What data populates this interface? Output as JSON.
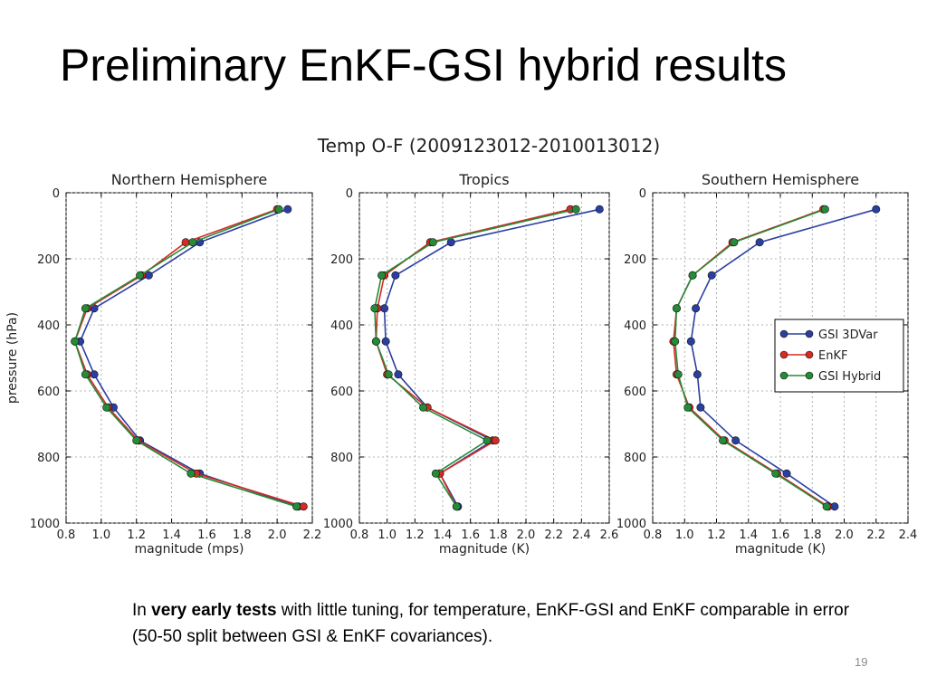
{
  "slide": {
    "title": "Preliminary EnKF-GSI hybrid results",
    "caption_prefix": "In ",
    "caption_bold": "very early tests",
    "caption_suffix": " with little tuning, for temperature, EnKF-GSI and EnKF comparable in error (50-50 split between GSI & EnKF covariances).",
    "page_number": "19"
  },
  "figure": {
    "suptitle": "Temp O-F (2009123012-2010013012)",
    "colors": {
      "GSI 3DVar": "#2b3fa1",
      "EnKF": "#d62a23",
      "GSI Hybrid": "#268b38"
    }
  },
  "chart_data": [
    {
      "type": "line",
      "title": "Northern Hemisphere",
      "xlabel": "magnitude (mps)",
      "ylabel": "pressure (hPa)",
      "xlim": [
        0.8,
        2.2
      ],
      "ylim": [
        1000,
        0
      ],
      "xticks": [
        "0.8",
        "1.0",
        "1.2",
        "1.4",
        "1.6",
        "1.8",
        "2.0",
        "2.2"
      ],
      "yticks": [
        "0",
        "200",
        "400",
        "600",
        "800",
        "1000"
      ],
      "grid": true,
      "y": [
        50,
        150,
        250,
        350,
        450,
        550,
        650,
        750,
        850,
        950
      ],
      "series": [
        {
          "name": "GSI 3DVar",
          "values": [
            2.06,
            1.56,
            1.27,
            0.96,
            0.88,
            0.96,
            1.07,
            1.22,
            1.56,
            2.12
          ]
        },
        {
          "name": "EnKF",
          "values": [
            2.0,
            1.48,
            1.23,
            0.92,
            0.85,
            0.92,
            1.04,
            1.21,
            1.54,
            2.15
          ]
        },
        {
          "name": "GSI Hybrid",
          "values": [
            2.01,
            1.52,
            1.22,
            0.91,
            0.85,
            0.91,
            1.03,
            1.2,
            1.51,
            2.11
          ]
        }
      ]
    },
    {
      "type": "line",
      "title": "Tropics",
      "xlabel": "magnitude (K)",
      "ylabel": "",
      "xlim": [
        0.8,
        2.6
      ],
      "ylim": [
        1000,
        0
      ],
      "xticks": [
        "0.8",
        "1.0",
        "1.2",
        "1.4",
        "1.6",
        "1.8",
        "2.0",
        "2.2",
        "2.4",
        "2.6"
      ],
      "yticks": [
        "0",
        "200",
        "400",
        "600",
        "800",
        "1000"
      ],
      "grid": true,
      "y": [
        50,
        150,
        250,
        350,
        450,
        550,
        650,
        750,
        850,
        950
      ],
      "series": [
        {
          "name": "GSI 3DVar",
          "values": [
            2.53,
            1.46,
            1.06,
            0.98,
            0.99,
            1.08,
            1.29,
            1.76,
            1.38,
            1.51
          ]
        },
        {
          "name": "EnKF",
          "values": [
            2.32,
            1.31,
            0.98,
            0.93,
            0.92,
            1.0,
            1.29,
            1.78,
            1.38,
            1.5
          ]
        },
        {
          "name": "GSI Hybrid",
          "values": [
            2.36,
            1.33,
            0.96,
            0.91,
            0.92,
            1.01,
            1.26,
            1.72,
            1.35,
            1.5
          ]
        }
      ]
    },
    {
      "type": "line",
      "title": "Southern Hemisphere",
      "xlabel": "magnitude (K)",
      "ylabel": "",
      "xlim": [
        0.8,
        2.4
      ],
      "ylim": [
        1000,
        0
      ],
      "xticks": [
        "0.8",
        "1.0",
        "1.2",
        "1.4",
        "1.6",
        "1.8",
        "2.0",
        "2.2",
        "2.4"
      ],
      "yticks": [
        "0",
        "200",
        "400",
        "600",
        "800",
        "1000"
      ],
      "grid": true,
      "legend": "right",
      "y": [
        50,
        150,
        250,
        350,
        450,
        550,
        650,
        750,
        850,
        950
      ],
      "series": [
        {
          "name": "GSI 3DVar",
          "values": [
            2.2,
            1.47,
            1.17,
            1.07,
            1.04,
            1.08,
            1.1,
            1.32,
            1.64,
            1.94
          ]
        },
        {
          "name": "EnKF",
          "values": [
            1.87,
            1.3,
            1.05,
            0.95,
            0.93,
            0.95,
            1.03,
            1.25,
            1.58,
            1.9
          ]
        },
        {
          "name": "GSI Hybrid",
          "values": [
            1.88,
            1.31,
            1.05,
            0.95,
            0.94,
            0.96,
            1.02,
            1.24,
            1.57,
            1.89
          ]
        }
      ]
    }
  ]
}
